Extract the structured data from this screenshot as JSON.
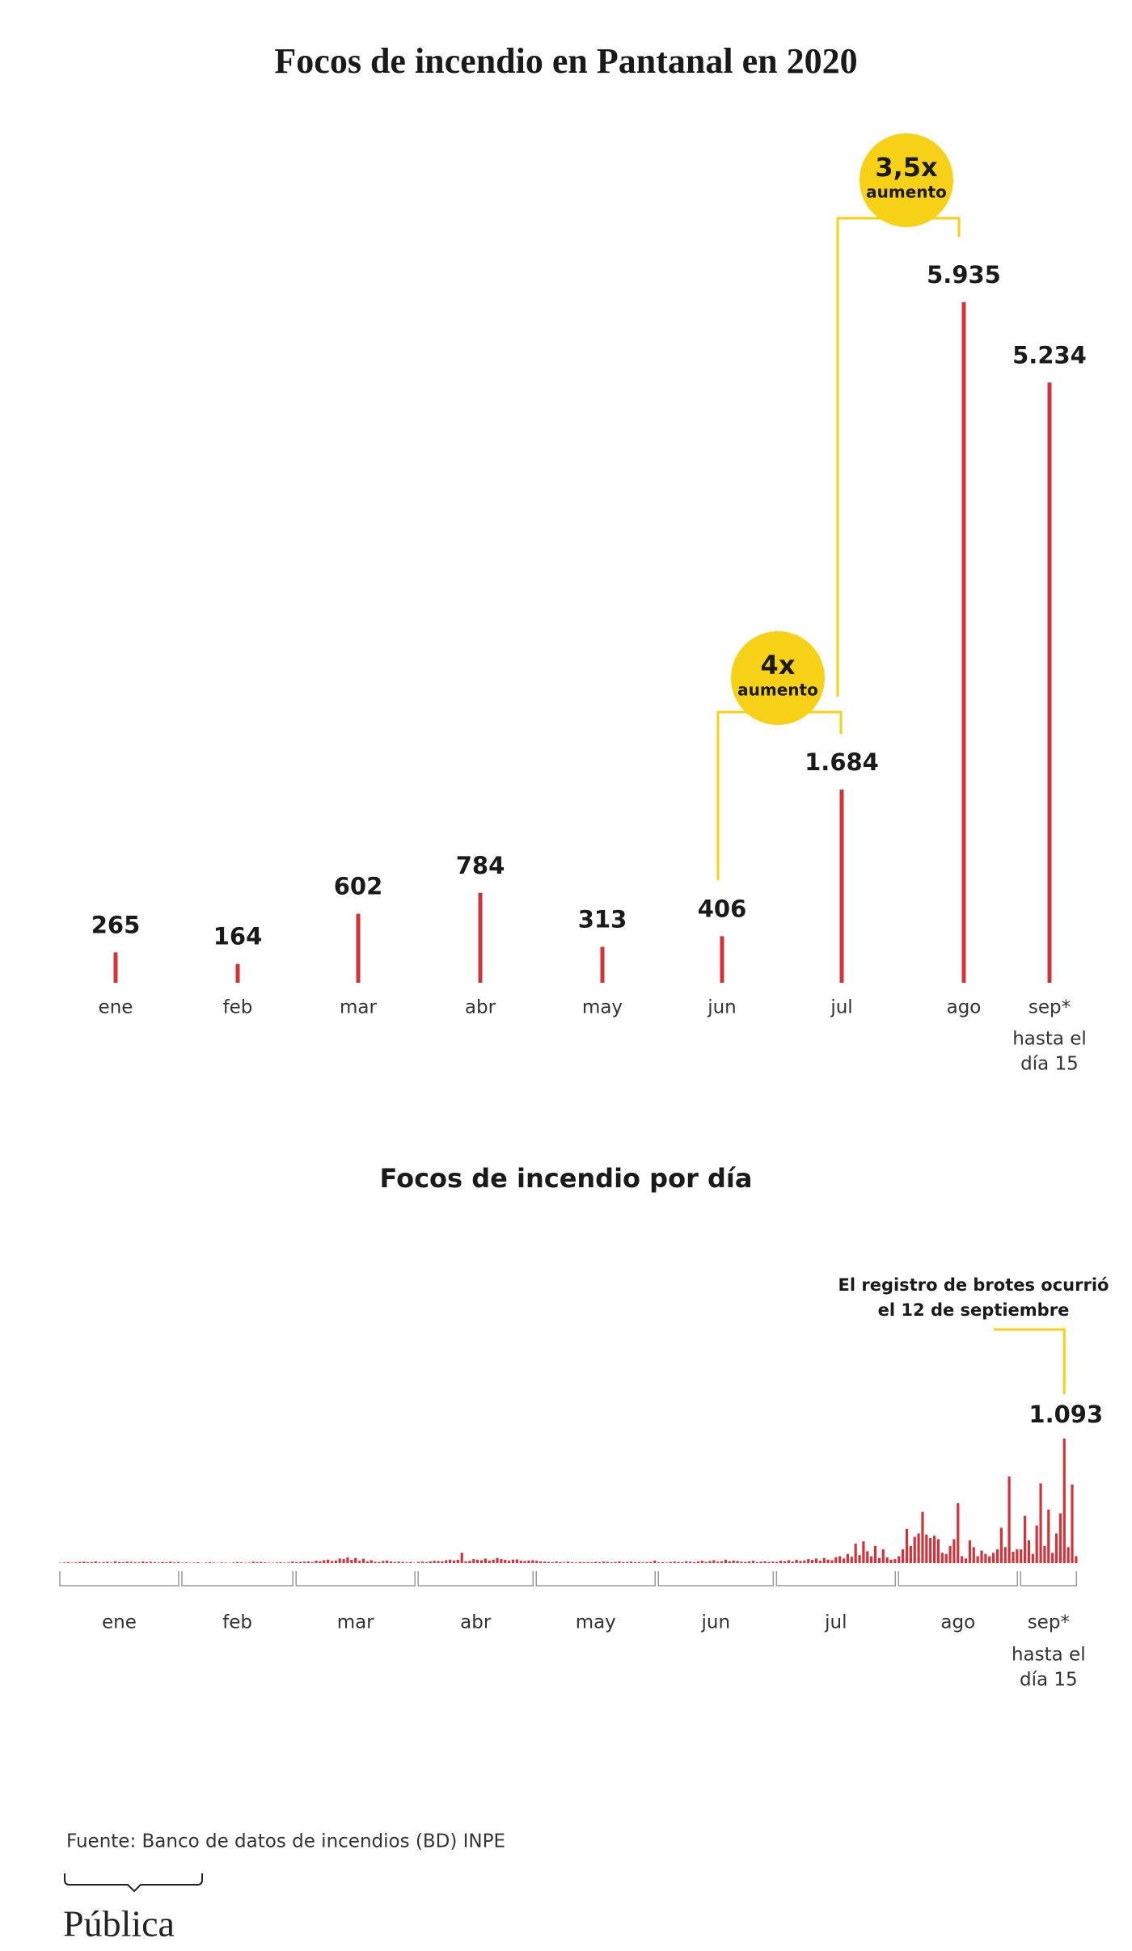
{
  "chart_data": [
    {
      "type": "bar",
      "title": "Focos de incendio en Pantanal en 2020",
      "categories": [
        "ene",
        "feb",
        "mar",
        "abr",
        "may",
        "jun",
        "jul",
        "ago",
        "sep*"
      ],
      "values": [
        265,
        164,
        602,
        784,
        313,
        406,
        1684,
        5935,
        5234
      ],
      "value_labels": [
        "265",
        "164",
        "602",
        "784",
        "313",
        "406",
        "1.684",
        "5.935",
        "5.234"
      ],
      "color": "#d0343a",
      "note_lines": [
        "hasta el",
        "día 15"
      ],
      "annotations": [
        {
          "text": "4x",
          "sub": "aumento"
        },
        {
          "text": "3,5x",
          "sub": "aumento"
        }
      ],
      "annotation_color": "#f7d117"
    },
    {
      "type": "daily",
      "title": "Focos de incendio por día",
      "color": "#d0343a",
      "note_lines": [
        "hasta el",
        "día 15"
      ],
      "annotation": [
        "El registro de brotes ocurrió",
        "el 12 de septiembre"
      ],
      "groups": [
        {
          "label": "ene",
          "values": [
            3,
            5,
            8,
            4,
            6,
            10,
            12,
            7,
            9,
            14,
            6,
            8,
            11,
            5,
            15,
            9,
            7,
            12,
            10,
            8,
            6,
            13,
            9,
            11,
            7,
            5,
            10,
            8,
            12,
            6,
            9
          ]
        },
        {
          "label": "feb",
          "values": [
            4,
            6,
            3,
            5,
            8,
            2,
            4,
            7,
            5,
            3,
            6,
            4,
            2,
            5,
            9,
            6,
            3,
            4,
            12,
            8,
            10,
            6,
            4,
            3,
            5,
            7,
            4,
            6,
            13
          ]
        },
        {
          "label": "mar",
          "values": [
            8,
            10,
            12,
            15,
            9,
            20,
            14,
            25,
            30,
            18,
            22,
            40,
            35,
            50,
            28,
            45,
            20,
            38,
            15,
            25,
            12,
            10,
            18,
            22,
            14,
            8,
            12,
            10,
            6,
            9,
            2
          ]
        },
        {
          "label": "abr",
          "values": [
            10,
            12,
            8,
            15,
            20,
            18,
            14,
            25,
            30,
            22,
            28,
            90,
            15,
            20,
            35,
            30,
            25,
            40,
            22,
            30,
            45,
            35,
            28,
            20,
            30,
            32,
            20,
            18,
            22,
            25
          ]
        },
        {
          "label": "may",
          "values": [
            20,
            15,
            12,
            10,
            8,
            14,
            9,
            6,
            12,
            8,
            5,
            10,
            7,
            9,
            6,
            11,
            8,
            12,
            10,
            6,
            9,
            14,
            8,
            10,
            12,
            7,
            9,
            6,
            8,
            10,
            22
          ]
        },
        {
          "label": "jun",
          "values": [
            6,
            8,
            5,
            10,
            12,
            9,
            7,
            15,
            11,
            8,
            14,
            20,
            10,
            18,
            25,
            12,
            16,
            30,
            14,
            22,
            18,
            12,
            10,
            15,
            20,
            8,
            12,
            16,
            10,
            13
          ]
        },
        {
          "label": "jul",
          "values": [
            10,
            20,
            15,
            25,
            12,
            30,
            18,
            22,
            35,
            28,
            40,
            20,
            45,
            30,
            25,
            50,
            60,
            40,
            80,
            55,
            170,
            70,
            190,
            104,
            60,
            150,
            45,
            120,
            50,
            30,
            35
          ]
        },
        {
          "label": "ago",
          "values": [
            60,
            120,
            300,
            150,
            230,
            260,
            450,
            250,
            220,
            240,
            210,
            90,
            80,
            150,
            210,
            525,
            60,
            40,
            200,
            140,
            60,
            110,
            80,
            60,
            90,
            120,
            310,
            140,
            760,
            100,
            120
          ]
        },
        {
          "label": "sep*",
          "values": [
            120,
            415,
            200,
            80,
            330,
            700,
            150,
            470,
            90,
            260,
            436,
            1093,
            140,
            690,
            60
          ],
          "value_labels": {
            "11": "1.093"
          }
        }
      ]
    }
  ],
  "source": "Fuente: Banco de datos de incendios (BD) INPE",
  "logo": "Pública"
}
